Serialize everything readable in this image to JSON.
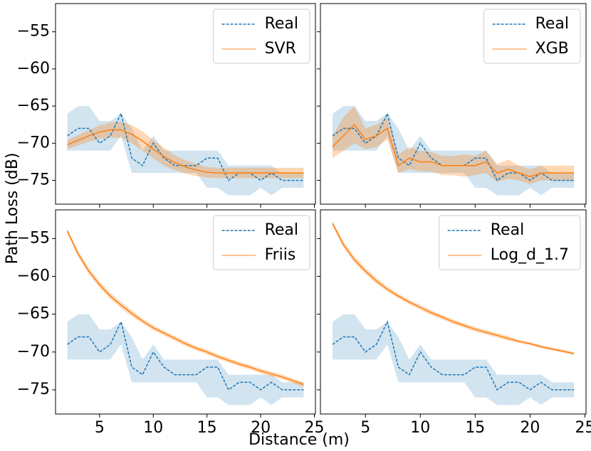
{
  "ylabel": "Path Loss (dB)",
  "xlabel": "Distance (m)",
  "chart_data": [
    {
      "type": "line",
      "x": [
        2,
        3,
        4,
        5,
        6,
        7,
        8,
        9,
        10,
        11,
        12,
        13,
        14,
        15,
        16,
        17,
        18,
        19,
        20,
        21,
        22,
        23,
        24
      ],
      "xlim": [
        0.9,
        25.1
      ],
      "ylim": [
        -78.2,
        -51.2
      ],
      "xticks": [
        5,
        10,
        15,
        20,
        25
      ],
      "yticks": [
        {
          "value": -55,
          "label": "−55"
        },
        {
          "value": -60,
          "label": "−60"
        },
        {
          "value": -65,
          "label": "−65"
        },
        {
          "value": -70,
          "label": "−70"
        },
        {
          "value": -75,
          "label": "−75"
        }
      ],
      "xtick_labels": false,
      "ytick_labels": true,
      "legend": "upper right",
      "series": [
        {
          "name": "Real",
          "color": "#1f77b4",
          "dashed": true,
          "values": [
            -69,
            -68,
            -68,
            -70,
            -69,
            -66,
            -72,
            -73,
            -70,
            -72,
            -73,
            -73,
            -73,
            -72,
            -72,
            -75,
            -74,
            -74,
            -75,
            -74,
            -75,
            -75,
            -75
          ],
          "lower": [
            -71,
            -71,
            -71,
            -71,
            -71,
            -69,
            -74,
            -74,
            -74,
            -74,
            -74,
            -74,
            -74,
            -76,
            -76,
            -77,
            -77,
            -77,
            -76,
            -77,
            -76,
            -76,
            -76
          ],
          "upper": [
            -66,
            -65,
            -65,
            -67,
            -67,
            -66,
            -68,
            -71,
            -69,
            -71,
            -71,
            -71,
            -71,
            -71,
            -71,
            -73,
            -73,
            -73,
            -73,
            -73,
            -74,
            -74,
            -74
          ]
        },
        {
          "name": "SVR",
          "color": "#ff7f0e",
          "dashed": false,
          "values": [
            -70.2,
            -69.6,
            -69,
            -68.5,
            -68.2,
            -68.2,
            -68.8,
            -69.7,
            -70.8,
            -71.8,
            -72.6,
            -73.2,
            -73.6,
            -73.9,
            -74,
            -74,
            -74,
            -74,
            -74,
            -74,
            -74,
            -74,
            -74
          ],
          "lower": [
            -70.8,
            -70.3,
            -69.8,
            -69.4,
            -69.2,
            -69.3,
            -70,
            -71,
            -72,
            -73,
            -73.6,
            -74.1,
            -74.4,
            -74.6,
            -74.7,
            -74.7,
            -74.7,
            -74.7,
            -74.7,
            -74.7,
            -74.7,
            -74.7,
            -74.7
          ],
          "upper": [
            -69.6,
            -68.9,
            -68.2,
            -67.6,
            -67.2,
            -67.1,
            -67.6,
            -68.4,
            -69.6,
            -70.6,
            -71.6,
            -72.3,
            -72.8,
            -73.2,
            -73.3,
            -73.3,
            -73.3,
            -73.3,
            -73.3,
            -73.3,
            -73.3,
            -73.3,
            -73.3
          ]
        }
      ]
    },
    {
      "type": "line",
      "x": [
        2,
        3,
        4,
        5,
        6,
        7,
        8,
        9,
        10,
        11,
        12,
        13,
        14,
        15,
        16,
        17,
        18,
        19,
        20,
        21,
        22,
        23,
        24
      ],
      "xlim": [
        0.9,
        25.1
      ],
      "ylim": [
        -78.2,
        -51.2
      ],
      "xticks": [
        5,
        10,
        15,
        20,
        25
      ],
      "yticks": [
        -55,
        -60,
        -65,
        -70,
        -75
      ],
      "xtick_labels": false,
      "ytick_labels": false,
      "legend": "upper right",
      "series": [
        {
          "name": "Real",
          "color": "#1f77b4",
          "dashed": true,
          "values": [
            -69,
            -68,
            -68,
            -70,
            -69,
            -66,
            -72,
            -73,
            -70,
            -72,
            -73,
            -73,
            -73,
            -72,
            -72,
            -75,
            -74,
            -74,
            -75,
            -74,
            -75,
            -75,
            -75
          ],
          "lower": [
            -71,
            -71,
            -71,
            -71,
            -71,
            -69,
            -74,
            -74,
            -74,
            -74,
            -74,
            -74,
            -74,
            -76,
            -76,
            -77,
            -77,
            -77,
            -76,
            -77,
            -76,
            -76,
            -76
          ],
          "upper": [
            -66,
            -65,
            -65,
            -67,
            -67,
            -66,
            -68,
            -71,
            -69,
            -71,
            -71,
            -71,
            -71,
            -71,
            -71,
            -73,
            -73,
            -73,
            -73,
            -73,
            -74,
            -74,
            -74
          ]
        },
        {
          "name": "XGB",
          "color": "#ff7f0e",
          "dashed": false,
          "values": [
            -70.5,
            -69,
            -67.5,
            -69.5,
            -69,
            -68,
            -73,
            -72,
            -72.5,
            -72.5,
            -73,
            -73,
            -73,
            -73,
            -72.5,
            -74,
            -73.5,
            -74,
            -74.5,
            -74,
            -74,
            -74,
            -74
          ],
          "lower": [
            -72,
            -71,
            -70,
            -70.8,
            -70.5,
            -69.5,
            -74,
            -73.5,
            -73.8,
            -73.8,
            -74.3,
            -74.3,
            -74.5,
            -74.3,
            -74,
            -75.2,
            -74.8,
            -75,
            -75.5,
            -75,
            -75,
            -75,
            -75
          ],
          "upper": [
            -69,
            -66.5,
            -65,
            -68,
            -67.5,
            -66.5,
            -71.5,
            -70.5,
            -71,
            -71.2,
            -71.7,
            -71.7,
            -71.5,
            -71.7,
            -71,
            -72.8,
            -72.2,
            -73,
            -73.5,
            -73,
            -73,
            -73,
            -73
          ]
        }
      ]
    },
    {
      "type": "line",
      "x": [
        2,
        3,
        4,
        5,
        6,
        7,
        8,
        9,
        10,
        11,
        12,
        13,
        14,
        15,
        16,
        17,
        18,
        19,
        20,
        21,
        22,
        23,
        24
      ],
      "xlim": [
        0.9,
        25.1
      ],
      "ylim": [
        -78.2,
        -51.2
      ],
      "xticks": [
        5,
        10,
        15,
        20,
        25
      ],
      "yticks": [
        {
          "value": -55,
          "label": "−55"
        },
        {
          "value": -60,
          "label": "−60"
        },
        {
          "value": -65,
          "label": "−65"
        },
        {
          "value": -70,
          "label": "−70"
        },
        {
          "value": -75,
          "label": "−75"
        }
      ],
      "xtick_labels": true,
      "ytick_labels": true,
      "legend": "upper right",
      "series": [
        {
          "name": "Real",
          "color": "#1f77b4",
          "dashed": true,
          "values": [
            -69,
            -68,
            -68,
            -70,
            -69,
            -66,
            -72,
            -73,
            -70,
            -72,
            -73,
            -73,
            -73,
            -72,
            -72,
            -75,
            -74,
            -74,
            -75,
            -74,
            -75,
            -75,
            -75
          ],
          "lower": [
            -71,
            -71,
            -71,
            -71,
            -71,
            -69,
            -74,
            -74,
            -74,
            -74,
            -74,
            -74,
            -74,
            -76,
            -76,
            -77,
            -77,
            -77,
            -76,
            -77,
            -76,
            -76,
            -76
          ],
          "upper": [
            -66,
            -65,
            -65,
            -67,
            -67,
            -66,
            -68,
            -71,
            -69,
            -71,
            -71,
            -71,
            -71,
            -71,
            -71,
            -73,
            -73,
            -73,
            -73,
            -73,
            -74,
            -74,
            -74
          ]
        },
        {
          "name": "Friis",
          "color": "#ff7f0e",
          "dashed": false,
          "values": [
            -54,
            -57,
            -59.3,
            -61.1,
            -62.6,
            -63.8,
            -64.9,
            -65.9,
            -66.8,
            -67.5,
            -68.2,
            -68.9,
            -69.5,
            -70,
            -70.6,
            -71.1,
            -71.6,
            -72,
            -72.5,
            -72.9,
            -73.3,
            -73.8,
            -74.3
          ],
          "lower": [
            -54.3,
            -57.4,
            -59.7,
            -61.5,
            -63,
            -64.2,
            -65.3,
            -66.2,
            -67.1,
            -67.8,
            -68.5,
            -69.2,
            -69.8,
            -70.3,
            -70.9,
            -71.4,
            -71.9,
            -72.3,
            -72.8,
            -73.2,
            -73.6,
            -74.1,
            -74.6
          ],
          "upper": [
            -53.7,
            -56.6,
            -58.9,
            -60.7,
            -62.2,
            -63.4,
            -64.5,
            -65.6,
            -66.5,
            -67.2,
            -67.9,
            -68.6,
            -69.2,
            -69.7,
            -70.3,
            -70.8,
            -71.3,
            -71.7,
            -72.2,
            -72.6,
            -73,
            -73.5,
            -74
          ]
        }
      ]
    },
    {
      "type": "line",
      "x": [
        2,
        3,
        4,
        5,
        6,
        7,
        8,
        9,
        10,
        11,
        12,
        13,
        14,
        15,
        16,
        17,
        18,
        19,
        20,
        21,
        22,
        23,
        24
      ],
      "xlim": [
        0.9,
        25.1
      ],
      "ylim": [
        -78.2,
        -51.2
      ],
      "xticks": [
        5,
        10,
        15,
        20,
        25
      ],
      "yticks": [
        -55,
        -60,
        -65,
        -70,
        -75
      ],
      "xtick_labels": true,
      "ytick_labels": false,
      "legend": "upper right",
      "series": [
        {
          "name": "Real",
          "color": "#1f77b4",
          "dashed": true,
          "values": [
            -69,
            -68,
            -68,
            -70,
            -69,
            -66,
            -72,
            -73,
            -70,
            -72,
            -73,
            -73,
            -73,
            -72,
            -72,
            -75,
            -74,
            -74,
            -75,
            -74,
            -75,
            -75,
            -75
          ],
          "lower": [
            -71,
            -71,
            -71,
            -71,
            -71,
            -69,
            -74,
            -74,
            -74,
            -74,
            -74,
            -74,
            -74,
            -76,
            -76,
            -77,
            -77,
            -77,
            -76,
            -77,
            -76,
            -76,
            -76
          ],
          "upper": [
            -66,
            -65,
            -65,
            -67,
            -67,
            -66,
            -68,
            -71,
            -69,
            -71,
            -71,
            -71,
            -71,
            -71,
            -71,
            -73,
            -73,
            -73,
            -73,
            -73,
            -74,
            -74,
            -74
          ]
        },
        {
          "name": "Log_d_1.7",
          "color": "#ff7f0e",
          "dashed": false,
          "values": [
            -53,
            -55.8,
            -57.8,
            -59.3,
            -60.6,
            -61.7,
            -62.6,
            -63.4,
            -64.1,
            -64.8,
            -65.4,
            -66,
            -66.5,
            -67,
            -67.4,
            -67.8,
            -68.2,
            -68.6,
            -68.9,
            -69.3,
            -69.6,
            -69.9,
            -70.2
          ],
          "lower": [
            -53.3,
            -56.2,
            -58.2,
            -59.7,
            -61,
            -62,
            -62.9,
            -63.7,
            -64.4,
            -65.1,
            -65.7,
            -66.3,
            -66.8,
            -67.3,
            -67.7,
            -68.1,
            -68.5,
            -68.8,
            -69.1,
            -69.5,
            -69.8,
            -70.1,
            -70.4
          ],
          "upper": [
            -52.7,
            -55.4,
            -57.4,
            -58.9,
            -60.2,
            -61.4,
            -62.3,
            -63.1,
            -63.8,
            -64.5,
            -65.1,
            -65.7,
            -66.2,
            -66.7,
            -67.1,
            -67.5,
            -67.9,
            -68.4,
            -68.7,
            -69.1,
            -69.4,
            -69.7,
            -70
          ]
        }
      ]
    }
  ]
}
